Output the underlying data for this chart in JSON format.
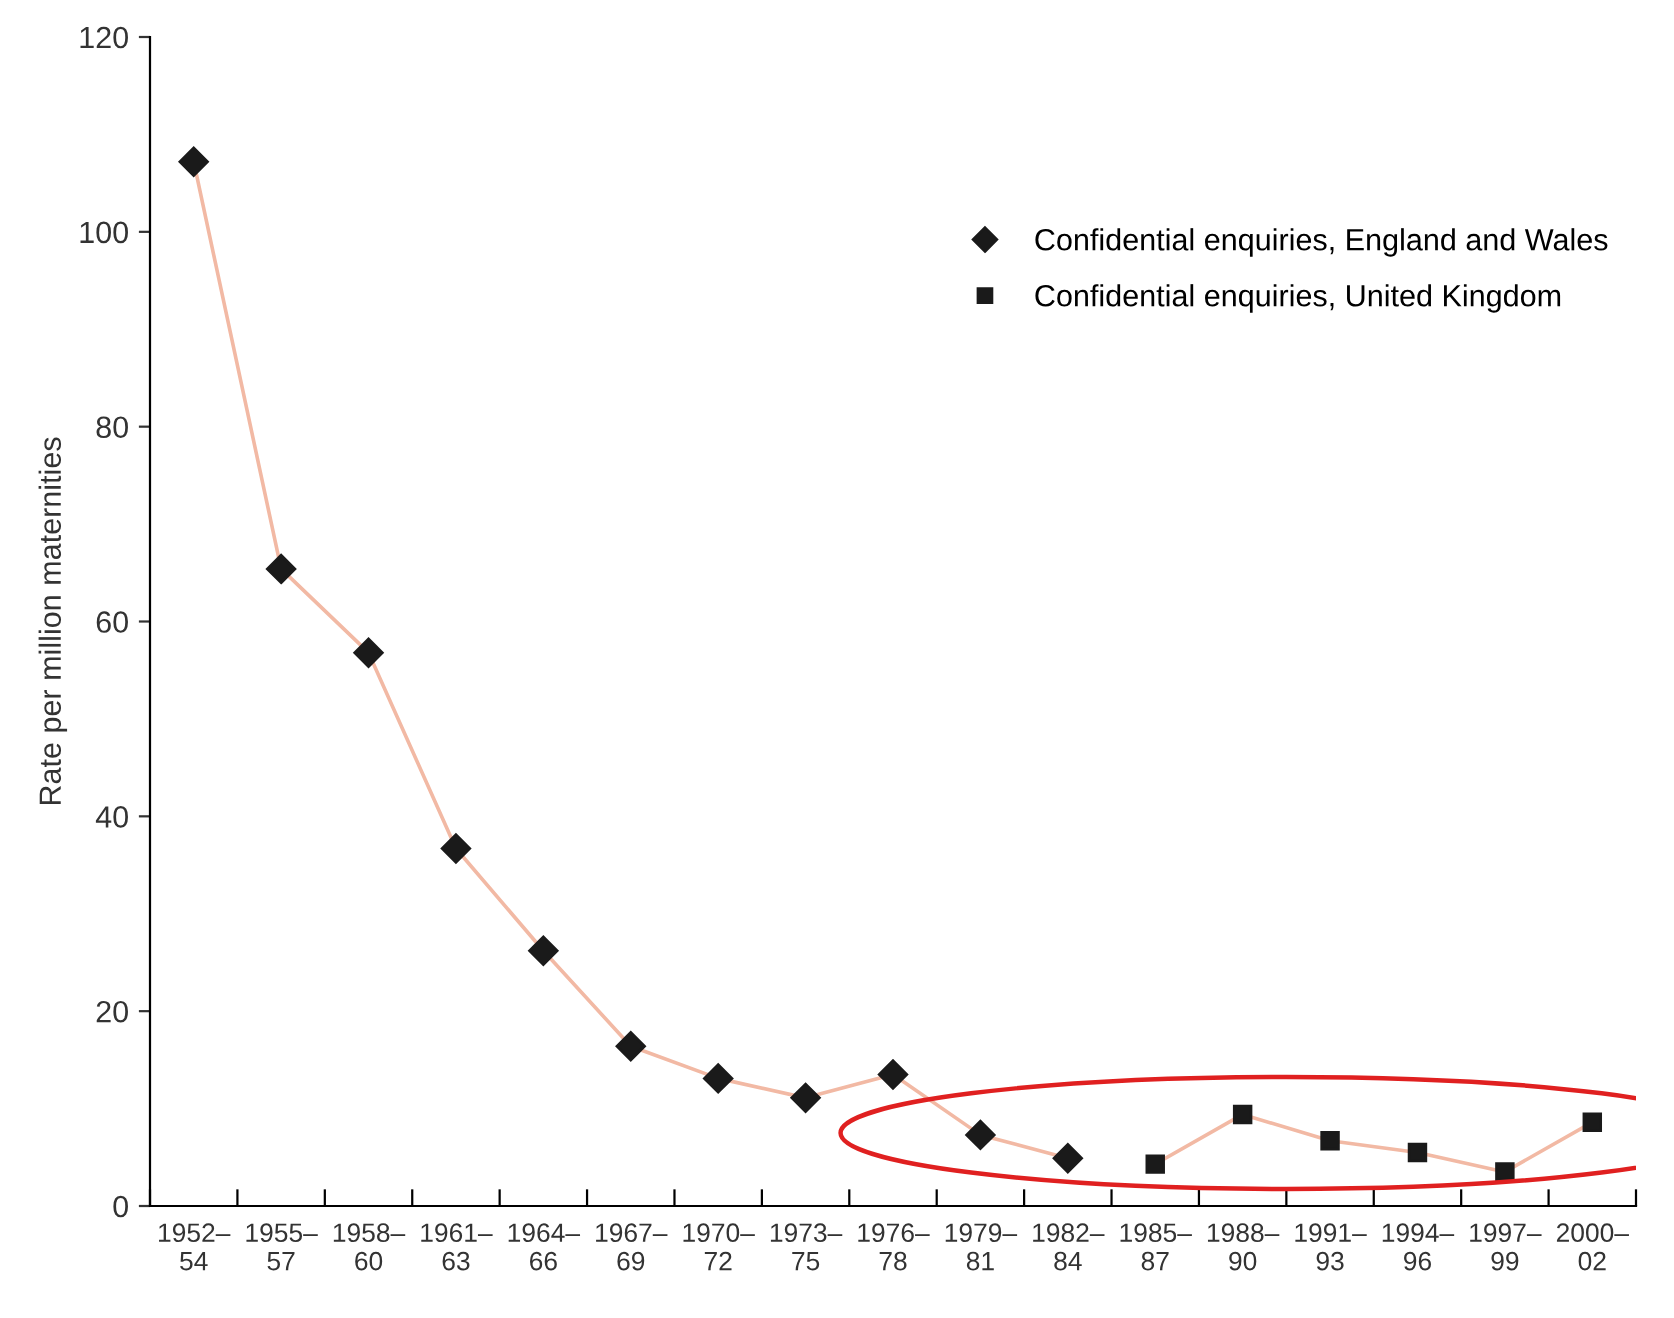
{
  "chart_data": {
    "type": "line",
    "ylabel": "Rate per million maternities",
    "categories": [
      "1952–\n54",
      "1955–\n57",
      "1958–\n60",
      "1961–\n63",
      "1964–\n66",
      "1967–\n69",
      "1970–\n72",
      "1973–\n75",
      "1976–\n78",
      "1979–\n81",
      "1982–\n84",
      "1985–\n87",
      "1988–\n90",
      "1991–\n93",
      "1994–\n96",
      "1997–\n99",
      "2000–\n02"
    ],
    "series": [
      {
        "name": "Confidential enquiries, England and Wales",
        "color": "#1a1a1a",
        "marker": "diamond",
        "values": [
          107.2,
          65.4,
          56.8,
          36.7,
          26.2,
          16.4,
          13.1,
          11.1,
          13.5,
          7.3,
          4.9,
          null,
          null,
          null,
          null,
          null,
          null
        ]
      },
      {
        "name": "Confidential enquiries, United Kingdom",
        "color": "#1a1a1a",
        "marker": "square",
        "values": [
          null,
          null,
          null,
          null,
          null,
          null,
          null,
          null,
          null,
          null,
          null,
          4.3,
          9.4,
          6.7,
          5.5,
          3.5,
          8.6
        ]
      }
    ],
    "ylim": [
      0,
      120
    ],
    "yticks": [
      0,
      20,
      40,
      60,
      80,
      100,
      120
    ],
    "grid": false,
    "legend": "top right",
    "line_style": "solid"
  }
}
